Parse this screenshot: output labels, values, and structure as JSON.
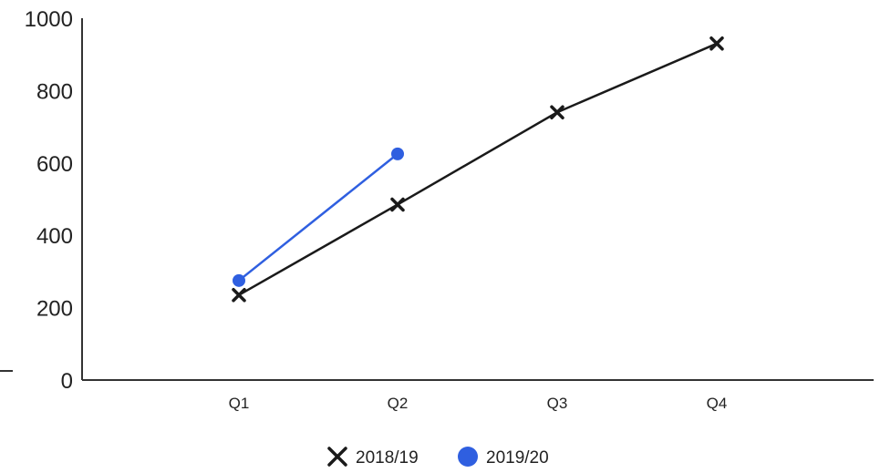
{
  "chart_data": {
    "type": "line",
    "title": "",
    "xlabel": "",
    "ylabel": "",
    "categories": [
      "Q1",
      "Q2",
      "Q3",
      "Q4"
    ],
    "ylim": [
      0,
      1000
    ],
    "yticks": [
      0,
      200,
      400,
      600,
      800,
      1000
    ],
    "grid": false,
    "legend_position": "bottom",
    "series": [
      {
        "name": "2018/19",
        "values": [
          235,
          485,
          740,
          930
        ],
        "color": "#1a1a1a",
        "marker": "x"
      },
      {
        "name": "2019/20",
        "values": [
          275,
          625,
          null,
          null
        ],
        "color": "#2f5fe0",
        "marker": "circle"
      }
    ]
  }
}
